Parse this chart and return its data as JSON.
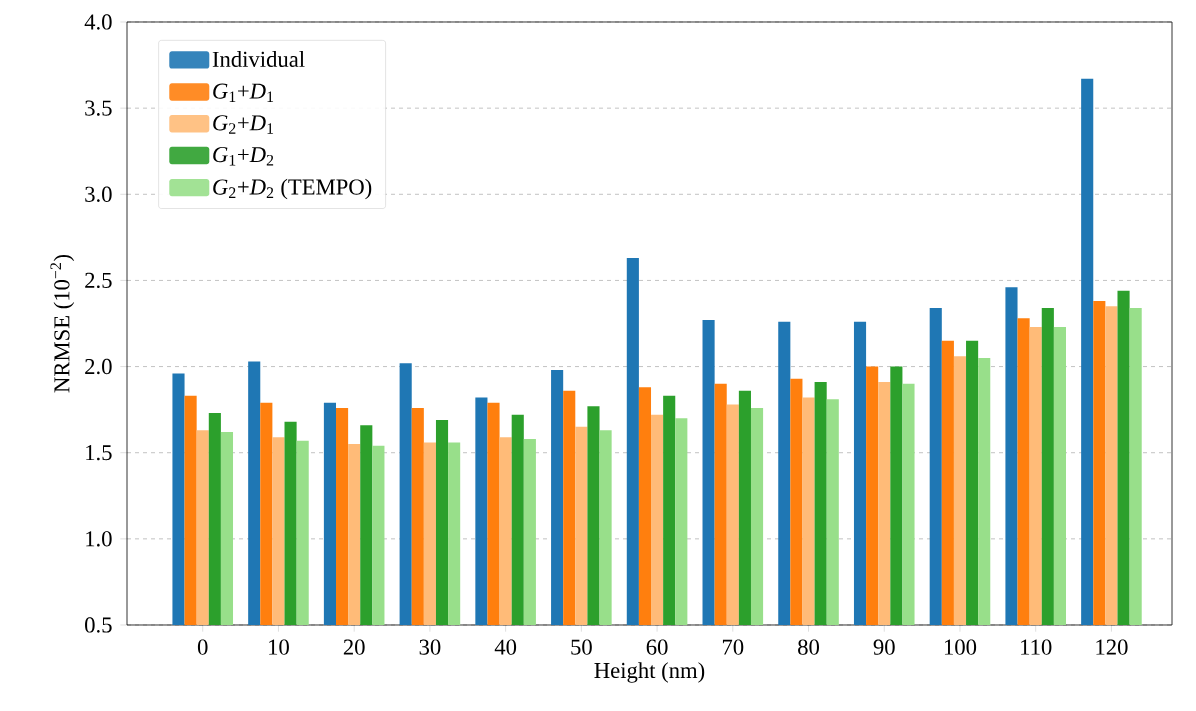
{
  "chart_data": {
    "type": "bar",
    "xlabel": "Height (nm)",
    "ylabel": "NRMSE (10$^{−2}$)",
    "categories": [
      "0",
      "10",
      "20",
      "30",
      "40",
      "50",
      "60",
      "70",
      "80",
      "90",
      "100",
      "110",
      "120"
    ],
    "series": [
      {
        "name": "Individual",
        "color": "#1f77b4",
        "values": [
          1.96,
          2.03,
          1.79,
          2.02,
          1.82,
          1.98,
          2.63,
          2.27,
          2.26,
          2.26,
          2.34,
          2.46,
          3.67
        ]
      },
      {
        "name": "*G*$_{1}$+*D*$_{1}$",
        "color": "#ff7f0e",
        "values": [
          1.83,
          1.79,
          1.76,
          1.76,
          1.79,
          1.86,
          1.88,
          1.9,
          1.93,
          2.0,
          2.15,
          2.28,
          2.38
        ]
      },
      {
        "name": "*G*$_{2}$+*D*$_{1}$",
        "color": "#ffbb78",
        "values": [
          1.63,
          1.59,
          1.55,
          1.56,
          1.59,
          1.65,
          1.72,
          1.78,
          1.82,
          1.91,
          2.06,
          2.23,
          2.35
        ]
      },
      {
        "name": "*G*$_{1}$+*D*$_{2}$",
        "color": "#2ca02c",
        "values": [
          1.73,
          1.68,
          1.66,
          1.69,
          1.72,
          1.77,
          1.83,
          1.86,
          1.91,
          2.0,
          2.15,
          2.34,
          2.44
        ]
      },
      {
        "name": "*G*$_{2}$+*D*$_{2}$ (TEMPO)",
        "color": "#98df8a",
        "values": [
          1.62,
          1.57,
          1.54,
          1.56,
          1.58,
          1.63,
          1.7,
          1.76,
          1.81,
          1.9,
          2.05,
          2.23,
          2.34
        ]
      }
    ],
    "ylim": [
      0.5,
      4.0
    ],
    "yticks": [
      0.5,
      {
        "value": 1,
        "label": "1.0"
      },
      1.5,
      {
        "value": 2,
        "label": "2.0"
      },
      2.5,
      {
        "value": 3,
        "label": "3.0"
      },
      3.5,
      {
        "value": 4,
        "label": "4.0"
      }
    ],
    "grid": "y",
    "legend": "top left"
  }
}
